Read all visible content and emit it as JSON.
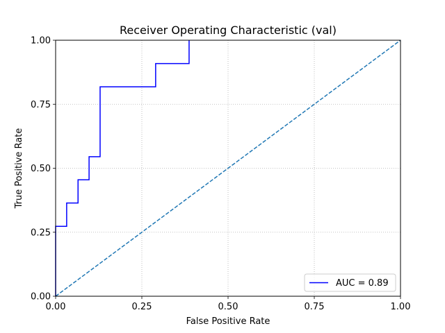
{
  "chart_data": {
    "type": "line",
    "title": "Receiver Operating Characteristic (val)",
    "xlabel": "False Positive Rate",
    "ylabel": "True Positive Rate",
    "xlim": [
      0,
      1
    ],
    "ylim": [
      0,
      1
    ],
    "grid": true,
    "x_ticks": [
      "0.00",
      "0.25",
      "0.50",
      "0.75",
      "1.00"
    ],
    "y_ticks": [
      "0.00",
      "0.25",
      "0.50",
      "0.75",
      "1.00"
    ],
    "legend_position": "lower-right",
    "series": [
      {
        "name": "AUC = 0.89",
        "color": "#0000ff",
        "style": "solid",
        "x": [
          0.0,
          0.0,
          0.032,
          0.032,
          0.065,
          0.065,
          0.097,
          0.097,
          0.129,
          0.129,
          0.29,
          0.29,
          0.387,
          0.387
        ],
        "y": [
          0.0,
          0.273,
          0.273,
          0.364,
          0.364,
          0.455,
          0.455,
          0.545,
          0.545,
          0.818,
          0.818,
          0.909,
          0.909,
          1.0
        ]
      },
      {
        "color": "#1f77b4",
        "style": "dashed",
        "x": [
          0,
          1
        ],
        "y": [
          0,
          1
        ]
      }
    ]
  }
}
